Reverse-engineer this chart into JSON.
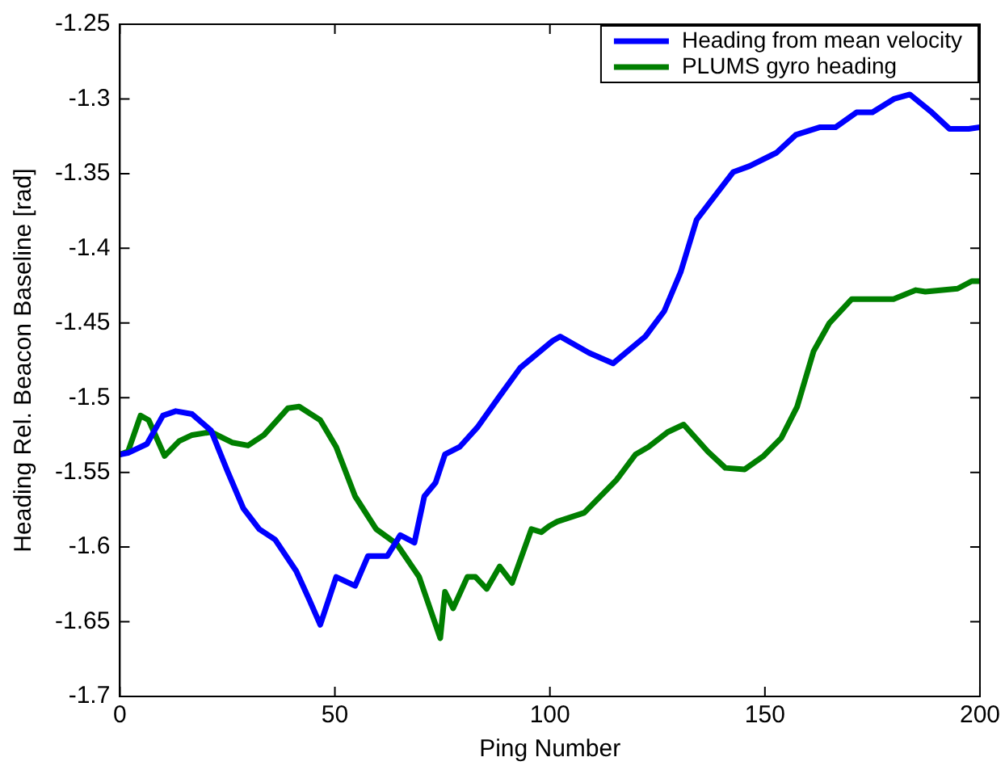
{
  "chart_data": {
    "type": "line",
    "xlabel": "Ping Number",
    "ylabel": "Heading Rel. Beacon Baseline [rad]",
    "xlim": [
      0,
      200
    ],
    "xticks": [
      0,
      50,
      100,
      150,
      200
    ],
    "ylim": [
      -1.7,
      -1.25
    ],
    "yticks": [
      -1.7,
      -1.65,
      -1.6,
      -1.55,
      -1.5,
      -1.45,
      -1.4,
      -1.35,
      -1.3,
      -1.25
    ],
    "grid": false,
    "legend": "top right",
    "marker": "none",
    "line_style": "solid",
    "series": [
      {
        "name": "Heading from mean velocity",
        "color": "#0000ff",
        "x": [
          0,
          1.9,
          6.3,
          10,
          13,
          16.8,
          21.2,
          25,
          28.7,
          32.4,
          36.1,
          41,
          44,
          46.6,
          50.3,
          54.7,
          57.7,
          62.2,
          65.2,
          68.5,
          70.8,
          73.4,
          75.6,
          79,
          83.1,
          88.3,
          93.1,
          100.6,
          102.4,
          109.1,
          114.7,
          122.2,
          126.6,
          130.4,
          134.1,
          137.8,
          142.6,
          146.4,
          152.7,
          157.2,
          162.7,
          166.4,
          171.3,
          175,
          180,
          183.7,
          188.8,
          192.9,
          197.4,
          200
        ],
        "values": [
          -1.538,
          -1.537,
          -1.531,
          -1.512,
          -1.509,
          -1.511,
          -1.522,
          -1.549,
          -1.574,
          -1.588,
          -1.595,
          -1.616,
          -1.635,
          -1.652,
          -1.62,
          -1.626,
          -1.606,
          -1.606,
          -1.592,
          -1.597,
          -1.566,
          -1.557,
          -1.538,
          -1.533,
          -1.52,
          -1.499,
          -1.48,
          -1.462,
          -1.459,
          -1.47,
          -1.477,
          -1.459,
          -1.442,
          -1.416,
          -1.381,
          -1.367,
          -1.349,
          -1.345,
          -1.336,
          -1.324,
          -1.319,
          -1.319,
          -1.309,
          -1.309,
          -1.3,
          -1.297,
          -1.309,
          -1.32,
          -1.32,
          -1.319
        ]
      },
      {
        "name": "PLUMS gyro heading",
        "color": "#007f00",
        "x": [
          0,
          1.9,
          4.8,
          6.7,
          10.4,
          13.8,
          16.8,
          21.2,
          26.1,
          29.8,
          33.5,
          39.1,
          41.7,
          46.6,
          50.3,
          54.7,
          59.6,
          64.4,
          69.6,
          74.5,
          75.6,
          77.5,
          80.8,
          82.7,
          85.3,
          88.3,
          91.2,
          95.7,
          98,
          99.8,
          101.7,
          108,
          115.5,
          119.9,
          122.9,
          127.4,
          131.1,
          136.7,
          140.8,
          145.3,
          149.7,
          153.8,
          157.5,
          161.3,
          165,
          170.2,
          179.9,
          185.1,
          187.3,
          194.8,
          198.1,
          200
        ],
        "values": [
          -1.538,
          -1.536,
          -1.512,
          -1.515,
          -1.539,
          -1.529,
          -1.525,
          -1.523,
          -1.53,
          -1.532,
          -1.525,
          -1.507,
          -1.506,
          -1.515,
          -1.533,
          -1.566,
          -1.588,
          -1.598,
          -1.62,
          -1.661,
          -1.63,
          -1.641,
          -1.62,
          -1.62,
          -1.628,
          -1.613,
          -1.624,
          -1.588,
          -1.59,
          -1.586,
          -1.583,
          -1.577,
          -1.555,
          -1.538,
          -1.533,
          -1.523,
          -1.518,
          -1.536,
          -1.547,
          -1.548,
          -1.539,
          -1.527,
          -1.506,
          -1.469,
          -1.45,
          -1.434,
          -1.434,
          -1.428,
          -1.429,
          -1.427,
          -1.422,
          -1.422
        ]
      }
    ]
  }
}
